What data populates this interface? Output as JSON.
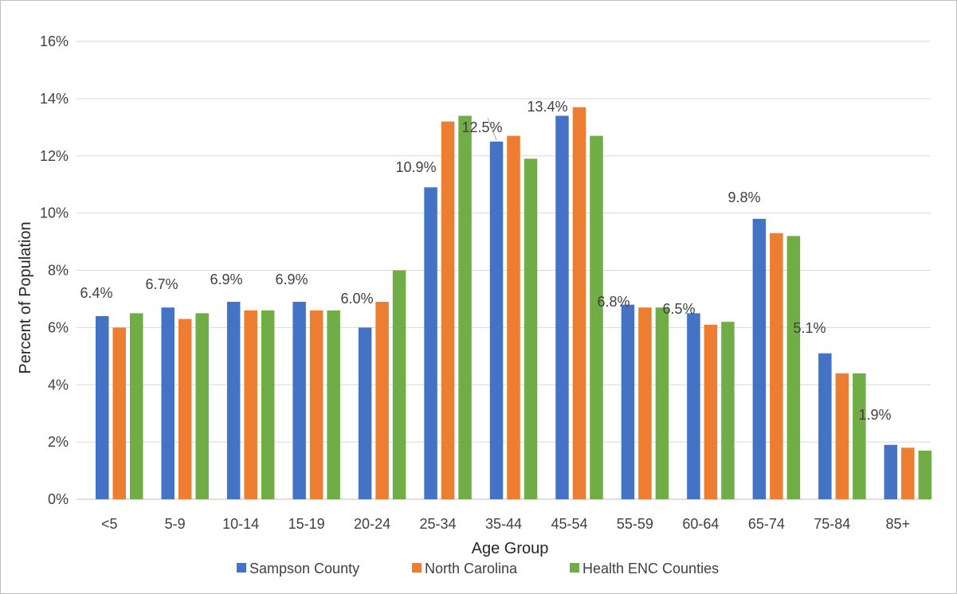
{
  "chart_data": {
    "type": "bar",
    "title": "",
    "xlabel": "Age Group",
    "ylabel": "Percent of Population",
    "ylim": [
      0,
      16
    ],
    "yticks": [
      0,
      2,
      4,
      6,
      8,
      10,
      12,
      14,
      16
    ],
    "ytick_labels": [
      "0%",
      "2%",
      "4%",
      "6%",
      "8%",
      "10%",
      "12%",
      "14%",
      "16%"
    ],
    "grid": true,
    "legend_position": "bottom",
    "categories": [
      "<5",
      "5-9",
      "10-14",
      "15-19",
      "20-24",
      "25-34",
      "35-44",
      "45-54",
      "55-59",
      "60-64",
      "65-74",
      "75-84",
      "85+"
    ],
    "series": [
      {
        "name": "Sampson County",
        "color": "#4472c4",
        "values": [
          6.4,
          6.7,
          6.9,
          6.9,
          6.0,
          10.9,
          12.5,
          13.4,
          6.8,
          6.5,
          9.8,
          5.1,
          1.9
        ],
        "data_labels": [
          "6.4%",
          "6.7%",
          "6.9%",
          "6.9%",
          "6.0%",
          "10.9%",
          "12.5%",
          "13.4%",
          "6.8%",
          "6.5%",
          "9.8%",
          "5.1%",
          "1.9%"
        ]
      },
      {
        "name": "North Carolina",
        "color": "#ed7d31",
        "values": [
          6.0,
          6.3,
          6.6,
          6.6,
          6.9,
          13.2,
          12.7,
          13.7,
          6.7,
          6.1,
          9.3,
          4.4,
          1.8
        ]
      },
      {
        "name": "Health ENC Counties",
        "color": "#70ad47",
        "values": [
          6.5,
          6.5,
          6.6,
          6.6,
          8.0,
          13.4,
          11.9,
          12.7,
          6.7,
          6.2,
          9.2,
          4.4,
          1.7
        ]
      }
    ]
  }
}
